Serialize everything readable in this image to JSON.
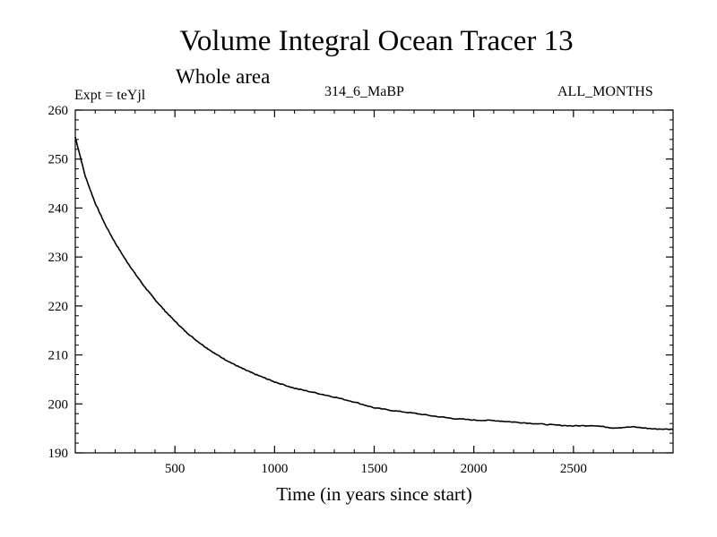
{
  "chart_data": {
    "type": "line",
    "title": "Volume Integral Ocean Tracer 13",
    "subtitle": "Whole area",
    "experiment_label": "Expt = teYjl",
    "run_label": "314_6_MaBP",
    "period_label": "ALL_MONTHS",
    "xlabel": "Time (in years since start)",
    "ylabel": "",
    "xlim": [
      0,
      3000
    ],
    "ylim": [
      190,
      260
    ],
    "xticks": [
      500,
      1000,
      1500,
      2000,
      2500
    ],
    "yticks": [
      190,
      200,
      210,
      220,
      230,
      240,
      250,
      260
    ],
    "x_minor_step": 100,
    "y_minor_step": 2,
    "grid": false,
    "series": [
      {
        "name": "Tracer 13",
        "color": "#000000",
        "x": [
          0,
          50,
          100,
          150,
          200,
          250,
          300,
          350,
          400,
          450,
          500,
          550,
          600,
          650,
          700,
          750,
          800,
          850,
          900,
          950,
          1000,
          1100,
          1200,
          1300,
          1400,
          1500,
          1600,
          1700,
          1800,
          1900,
          2000,
          2100,
          2200,
          2300,
          2400,
          2500,
          2600,
          2700,
          2800,
          2900,
          3000
        ],
        "y": [
          254.5,
          246.5,
          241.0,
          236.6,
          232.9,
          229.6,
          226.6,
          223.8,
          221.3,
          219.0,
          216.9,
          214.9,
          213.2,
          211.7,
          210.3,
          209.1,
          208.0,
          207.0,
          206.1,
          205.3,
          204.5,
          203.2,
          202.3,
          201.4,
          200.4,
          199.2,
          198.6,
          198.1,
          197.5,
          197.0,
          196.7,
          196.6,
          196.3,
          196.0,
          195.7,
          195.5,
          195.6,
          195.1,
          195.3,
          194.9,
          194.8
        ]
      }
    ]
  }
}
